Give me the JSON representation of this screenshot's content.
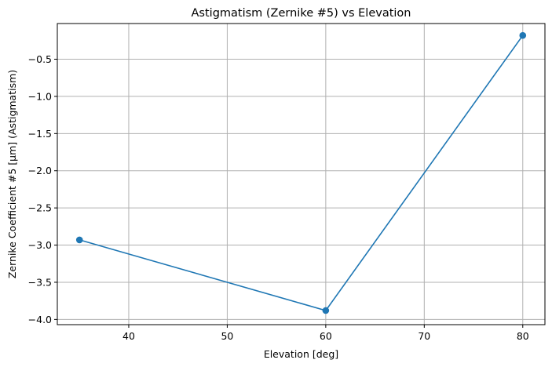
{
  "chart_data": {
    "type": "line",
    "title": "Astigmatism (Zernike #5) vs Elevation",
    "xlabel": "Elevation [deg]",
    "ylabel": "Zernike Coefficient #5 [µm] (Astigmatism)",
    "xlim": [
      32.75,
      82.25
    ],
    "ylim": [
      -4.07,
      -0.02
    ],
    "xticks": [
      40,
      50,
      60,
      70,
      80
    ],
    "yticks": [
      -4.0,
      -3.5,
      -3.0,
      -2.5,
      -2.0,
      -1.5,
      -1.0,
      -0.5
    ],
    "xtick_labels": [
      "40",
      "50",
      "60",
      "70",
      "80"
    ],
    "ytick_labels": [
      "−4.0",
      "−3.5",
      "−3.0",
      "−2.5",
      "−2.0",
      "−1.5",
      "−1.0",
      "−0.5"
    ],
    "grid": true,
    "series": [
      {
        "x": [
          35,
          60,
          80
        ],
        "values": [
          -2.93,
          -3.88,
          -0.18
        ],
        "color": "#1f77b4",
        "marker": "circle"
      }
    ]
  }
}
